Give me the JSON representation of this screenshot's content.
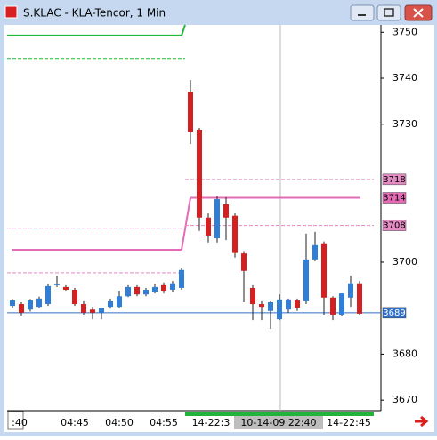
{
  "window": {
    "title": "S.KLAC - KLA-Tencor, 1 Min"
  },
  "chart_data": {
    "type": "candlestick",
    "ylim": [
      3668.1,
      3751.6
    ],
    "yticks": [
      3750,
      3740,
      3730,
      3700,
      3680,
      3670
    ],
    "up_color": "#2f7fd8",
    "down_color": "#d42020",
    "open": [
      3690.5,
      3690.9,
      3689.7,
      3690.3,
      3690.9,
      3695.0,
      3694.6,
      3694.0,
      3690.9,
      3689.7,
      3689.0,
      3690.3,
      3690.3,
      3692.6,
      3694.6,
      3693.0,
      3693.6,
      3695.0,
      3694.0,
      3694.4,
      3737.1,
      3728.8,
      3709.7,
      3705.2,
      3712.6,
      3710.1,
      3701.9,
      3694.4,
      3690.9,
      3689.4,
      3687.6,
      3689.7,
      3691.7,
      3691.5,
      3700.6,
      3704.1,
      3692.3,
      3688.6,
      3692.3,
      3695.4
    ],
    "high": [
      3692.0,
      3691.3,
      3692.0,
      3692.5,
      3695.2,
      3697.1,
      3695.0,
      3694.4,
      3691.5,
      3690.3,
      3689.9,
      3692.1,
      3693.8,
      3695.0,
      3695.0,
      3694.4,
      3695.2,
      3695.6,
      3695.9,
      3698.7,
      3739.6,
      3729.2,
      3710.6,
      3714.5,
      3714.1,
      3710.6,
      3702.4,
      3695.0,
      3691.5,
      3691.5,
      3693.0,
      3692.1,
      3692.1,
      3706.2,
      3706.6,
      3704.5,
      3692.6,
      3693.2,
      3697.1,
      3695.9
    ],
    "low": [
      3690.0,
      3688.4,
      3689.3,
      3690.0,
      3690.5,
      3694.6,
      3693.8,
      3690.5,
      3688.6,
      3687.6,
      3687.6,
      3689.9,
      3690.0,
      3692.4,
      3692.6,
      3692.6,
      3693.2,
      3693.2,
      3693.6,
      3694.0,
      3725.7,
      3706.8,
      3704.3,
      3704.3,
      3704.8,
      3701.0,
      3691.3,
      3687.4,
      3687.4,
      3685.5,
      3687.4,
      3689.0,
      3689.4,
      3690.9,
      3700.2,
      3688.6,
      3687.4,
      3688.2,
      3690.3,
      3688.6
    ],
    "close": [
      3691.7,
      3689.0,
      3691.7,
      3692.1,
      3694.8,
      3695.2,
      3694.0,
      3690.9,
      3689.0,
      3689.0,
      3690.1,
      3691.5,
      3692.6,
      3694.6,
      3693.0,
      3694.0,
      3694.6,
      3693.8,
      3695.4,
      3698.3,
      3728.4,
      3709.7,
      3705.8,
      3713.7,
      3709.7,
      3702.0,
      3698.1,
      3690.9,
      3690.3,
      3691.3,
      3691.9,
      3691.9,
      3690.1,
      3700.6,
      3703.7,
      3692.3,
      3688.6,
      3693.2,
      3695.4,
      3688.8
    ],
    "x_labels": [
      ":40",
      "04:45",
      "04:50",
      "04:55",
      "14-22:3",
      "14-22:45"
    ],
    "crosshair_label": "10-14-09 22:40",
    "levels": [
      {
        "value": 3718,
        "label": "3718",
        "color": "#e58bc3",
        "style": "dashed"
      },
      {
        "value": 3714,
        "label": "3714",
        "color": "#e46bb6",
        "style": "solid"
      },
      {
        "value": 3708,
        "label": "3708",
        "color": "#e58bc3",
        "style": "dashed"
      },
      {
        "value": 3689,
        "label": "3689",
        "color": "#2f6fc8",
        "style": "solid"
      }
    ],
    "lines": [
      {
        "value": 3749.3,
        "color": "#1fb83a",
        "style": "solid"
      },
      {
        "value": 3744.3,
        "color": "#1fb83a",
        "style": "dashed"
      },
      {
        "value": 3707.4,
        "color": "#e58bc3",
        "style": "dashed"
      },
      {
        "value": 3702.7,
        "color": "#e46bb6",
        "style": "solid"
      },
      {
        "value": 3697.7,
        "color": "#e58bc3",
        "style": "dashed"
      }
    ]
  }
}
